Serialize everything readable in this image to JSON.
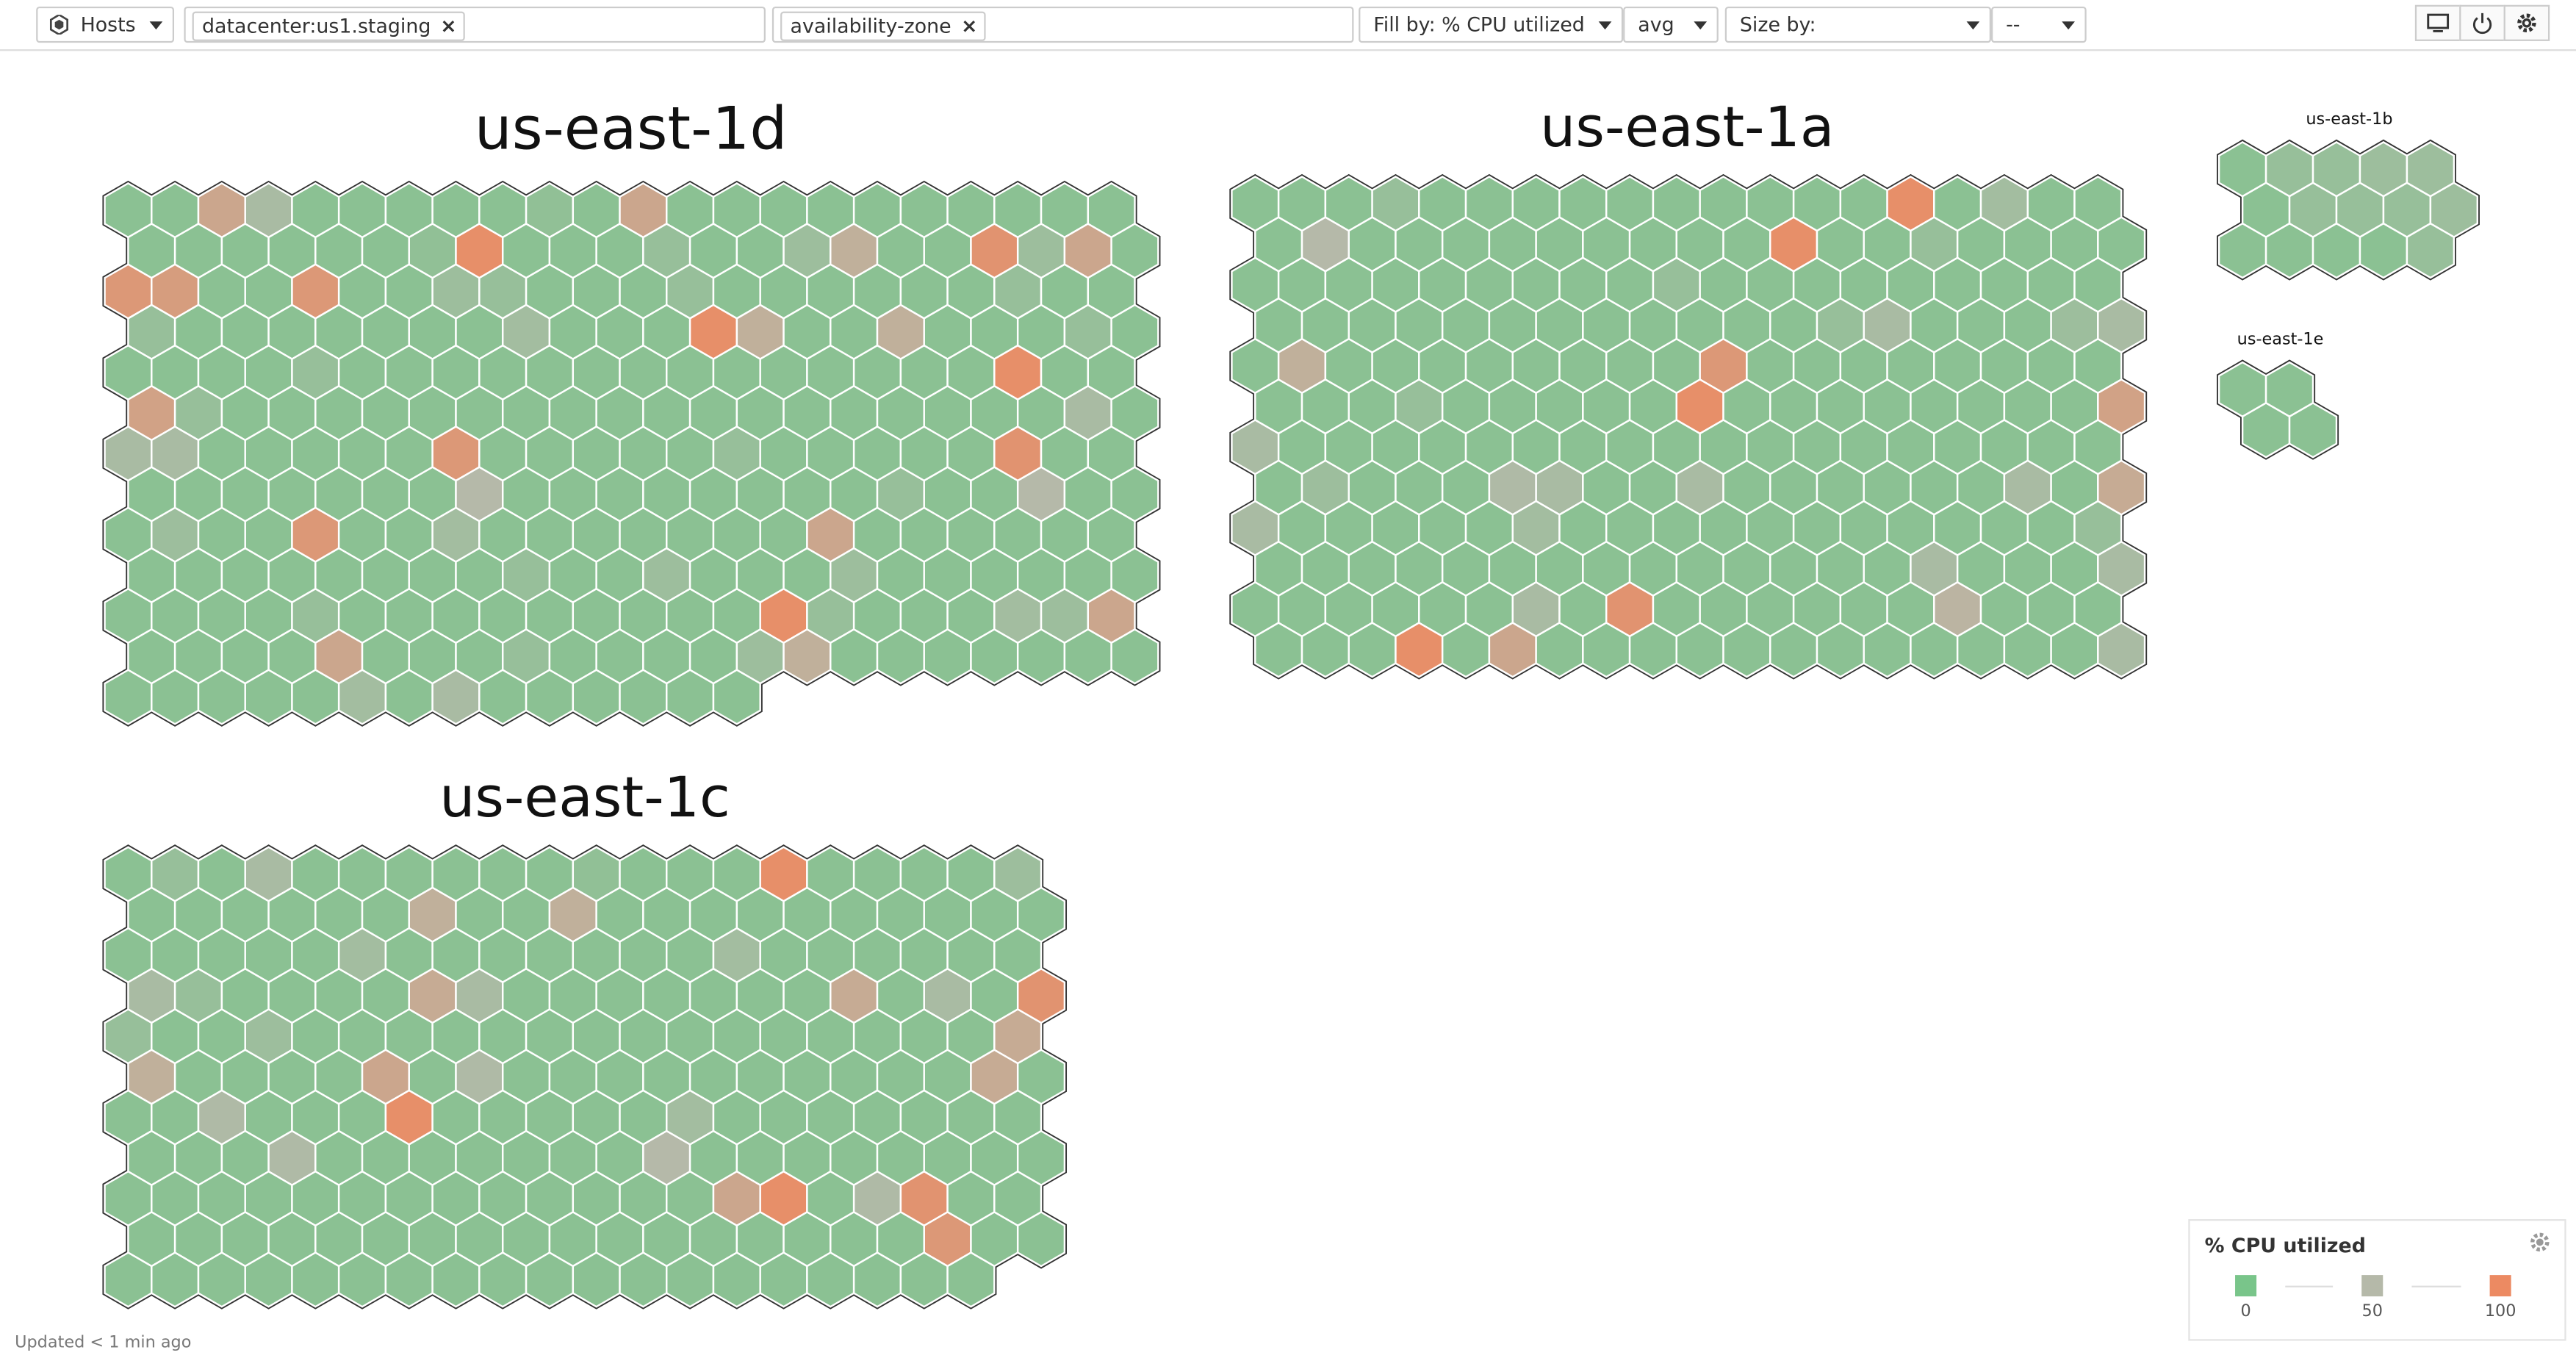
{
  "toolbar": {
    "scope": "Hosts",
    "filter_tags": [
      "datacenter:us1.staging"
    ],
    "group_tags": [
      "availability-zone"
    ],
    "fill_by": "Fill by: % CPU utilized",
    "fill_agg": "avg",
    "size_by": "Size by:",
    "size_agg": "--"
  },
  "chart_data": {
    "type": "hexmap",
    "groups": [
      {
        "name": "us-east-1d",
        "rows": [
          [
            15,
            15,
            70,
            40,
            15,
            15,
            15,
            15,
            15,
            20,
            15,
            70,
            15,
            15,
            15,
            15,
            15,
            15,
            15,
            15,
            15,
            15
          ],
          [
            15,
            15,
            15,
            15,
            15,
            15,
            20,
            95,
            15,
            15,
            15,
            25,
            15,
            15,
            30,
            60,
            15,
            15,
            90,
            30,
            70,
            15
          ],
          [
            85,
            80,
            15,
            15,
            85,
            15,
            15,
            30,
            25,
            15,
            15,
            15,
            25,
            15,
            15,
            15,
            15,
            15,
            15,
            25,
            15,
            15
          ],
          [
            25,
            15,
            15,
            15,
            15,
            15,
            15,
            15,
            35,
            15,
            15,
            15,
            95,
            60,
            15,
            15,
            60,
            15,
            15,
            15,
            25,
            15
          ],
          [
            15,
            15,
            15,
            15,
            25,
            15,
            15,
            15,
            15,
            15,
            15,
            15,
            15,
            15,
            15,
            15,
            15,
            15,
            15,
            95,
            15,
            15
          ],
          [
            75,
            25,
            15,
            15,
            15,
            15,
            15,
            15,
            15,
            15,
            15,
            15,
            15,
            15,
            15,
            15,
            15,
            15,
            15,
            15,
            40,
            15
          ],
          [
            40,
            40,
            15,
            15,
            15,
            15,
            15,
            85,
            15,
            15,
            15,
            15,
            15,
            25,
            15,
            15,
            15,
            15,
            15,
            90,
            15,
            15
          ],
          [
            15,
            15,
            15,
            15,
            15,
            15,
            15,
            50,
            15,
            15,
            15,
            15,
            15,
            15,
            15,
            15,
            25,
            15,
            15,
            50,
            15,
            15
          ],
          [
            15,
            30,
            15,
            15,
            85,
            15,
            15,
            35,
            15,
            15,
            15,
            15,
            15,
            15,
            15,
            70,
            15,
            15,
            15,
            15,
            15,
            15
          ],
          [
            15,
            15,
            15,
            15,
            15,
            15,
            15,
            15,
            25,
            15,
            15,
            30,
            15,
            15,
            15,
            30,
            15,
            15,
            15,
            15,
            15,
            15
          ],
          [
            15,
            15,
            15,
            15,
            25,
            15,
            15,
            15,
            15,
            15,
            15,
            15,
            15,
            15,
            95,
            25,
            15,
            15,
            15,
            35,
            30,
            70
          ],
          [
            15,
            15,
            15,
            15,
            70,
            15,
            15,
            15,
            25,
            15,
            15,
            15,
            15,
            30,
            60,
            15,
            15,
            15,
            15,
            15,
            15,
            15
          ],
          [
            15,
            15,
            15,
            15,
            15,
            35,
            15,
            40,
            15,
            15,
            15,
            15,
            15,
            15
          ]
        ]
      },
      {
        "name": "us-east-1a",
        "rows": [
          [
            15,
            15,
            15,
            25,
            15,
            15,
            15,
            15,
            15,
            15,
            15,
            15,
            15,
            15,
            95,
            15,
            35,
            15,
            15
          ],
          [
            15,
            50,
            15,
            15,
            15,
            15,
            15,
            15,
            15,
            15,
            15,
            95,
            15,
            15,
            25,
            15,
            15,
            15,
            15
          ],
          [
            15,
            15,
            15,
            15,
            15,
            15,
            15,
            15,
            15,
            25,
            15,
            15,
            15,
            15,
            15,
            15,
            15,
            15,
            15
          ],
          [
            15,
            15,
            15,
            15,
            15,
            15,
            15,
            15,
            15,
            15,
            15,
            15,
            25,
            40,
            15,
            15,
            15,
            30,
            40
          ],
          [
            15,
            60,
            15,
            15,
            15,
            15,
            15,
            15,
            15,
            15,
            85,
            15,
            15,
            15,
            15,
            15,
            15,
            15,
            15
          ],
          [
            15,
            15,
            15,
            25,
            15,
            15,
            15,
            15,
            15,
            95,
            15,
            15,
            15,
            15,
            15,
            15,
            15,
            15,
            75
          ],
          [
            40,
            15,
            15,
            15,
            15,
            15,
            15,
            15,
            15,
            15,
            15,
            15,
            15,
            15,
            15,
            15,
            15,
            15,
            15
          ],
          [
            15,
            30,
            15,
            15,
            15,
            45,
            40,
            15,
            15,
            40,
            15,
            15,
            15,
            15,
            15,
            15,
            40,
            15,
            65
          ],
          [
            40,
            15,
            15,
            15,
            15,
            15,
            35,
            15,
            15,
            15,
            15,
            15,
            15,
            15,
            15,
            15,
            15,
            15,
            25
          ],
          [
            15,
            15,
            15,
            15,
            15,
            15,
            15,
            15,
            15,
            15,
            15,
            15,
            15,
            15,
            40,
            15,
            15,
            15,
            40
          ],
          [
            15,
            15,
            15,
            15,
            15,
            15,
            40,
            15,
            90,
            15,
            15,
            15,
            15,
            15,
            15,
            55,
            15,
            15,
            15
          ],
          [
            15,
            15,
            15,
            95,
            15,
            70,
            15,
            15,
            15,
            15,
            15,
            15,
            15,
            15,
            15,
            15,
            15,
            15,
            40
          ]
        ]
      },
      {
        "name": "us-east-1b",
        "rows": [
          [
            15,
            25,
            25,
            30,
            30
          ],
          [
            15,
            25,
            25,
            25,
            30
          ],
          [
            15,
            15,
            15,
            15,
            25
          ]
        ]
      },
      {
        "name": "us-east-1e",
        "rows": [
          [
            15,
            15
          ],
          [
            15,
            15
          ]
        ]
      },
      {
        "name": "us-east-1c",
        "rows": [
          [
            15,
            25,
            15,
            40,
            15,
            15,
            15,
            15,
            15,
            15,
            20,
            15,
            15,
            15,
            95,
            15,
            15,
            15,
            15,
            30
          ],
          [
            15,
            15,
            15,
            15,
            15,
            15,
            60,
            15,
            15,
            60,
            15,
            15,
            15,
            15,
            15,
            15,
            15,
            15,
            15,
            15
          ],
          [
            15,
            15,
            15,
            15,
            15,
            35,
            15,
            15,
            15,
            15,
            15,
            15,
            15,
            35,
            15,
            15,
            15,
            15,
            15,
            15
          ],
          [
            40,
            25,
            15,
            15,
            15,
            15,
            65,
            40,
            15,
            15,
            15,
            15,
            15,
            15,
            15,
            65,
            15,
            40,
            15,
            90
          ],
          [
            25,
            15,
            15,
            30,
            15,
            15,
            15,
            15,
            15,
            15,
            15,
            15,
            15,
            15,
            15,
            15,
            15,
            15,
            15,
            65
          ],
          [
            60,
            15,
            15,
            15,
            15,
            70,
            15,
            45,
            15,
            15,
            15,
            15,
            15,
            15,
            15,
            15,
            15,
            15,
            65,
            15
          ],
          [
            15,
            15,
            45,
            15,
            15,
            15,
            95,
            15,
            15,
            15,
            15,
            15,
            35,
            15,
            15,
            15,
            15,
            15,
            15,
            15
          ],
          [
            15,
            15,
            15,
            45,
            15,
            15,
            15,
            15,
            15,
            15,
            15,
            50,
            15,
            15,
            15,
            15,
            15,
            15,
            15,
            15
          ],
          [
            15,
            15,
            15,
            15,
            15,
            15,
            15,
            15,
            15,
            15,
            15,
            15,
            15,
            70,
            95,
            15,
            45,
            90,
            15,
            15
          ],
          [
            15,
            15,
            15,
            15,
            15,
            15,
            15,
            15,
            15,
            15,
            15,
            15,
            15,
            15,
            15,
            15,
            15,
            85,
            15,
            15
          ],
          [
            15,
            15,
            15,
            15,
            15,
            15,
            15,
            15,
            15,
            15,
            15,
            15,
            15,
            15,
            15,
            15,
            15,
            15,
            15
          ]
        ]
      }
    ],
    "legend": {
      "title": "% CPU utilized",
      "ticks": [
        0,
        50,
        100
      ],
      "colors": [
        "#79c58a",
        "#b5b9a9",
        "#ec8a62"
      ]
    }
  },
  "status": "Updated < 1 min ago"
}
